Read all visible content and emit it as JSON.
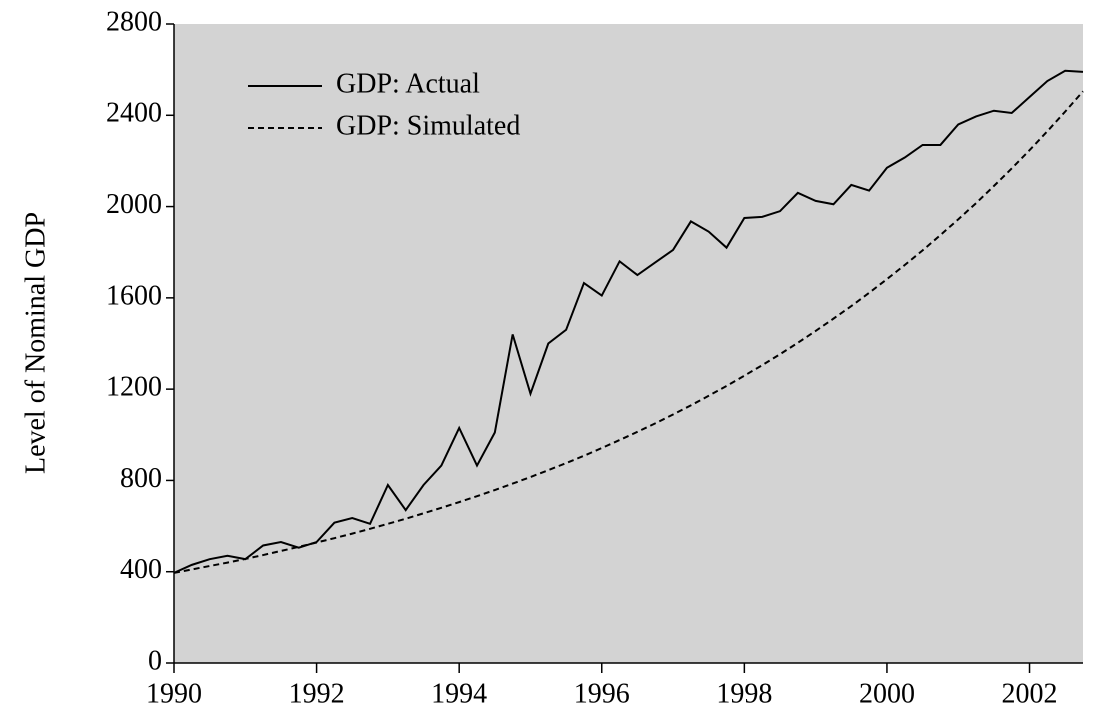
{
  "chart_data": {
    "type": "line",
    "y_label": "Level of Nominal GDP",
    "x": [
      1990,
      1990.25,
      1990.5,
      1990.75,
      1991,
      1991.25,
      1991.5,
      1991.75,
      1992,
      1992.25,
      1992.5,
      1992.75,
      1993,
      1993.25,
      1993.5,
      1993.75,
      1994,
      1994.25,
      1994.5,
      1994.75,
      1995,
      1995.25,
      1995.5,
      1995.75,
      1996,
      1996.25,
      1996.5,
      1996.75,
      1997,
      1997.25,
      1997.5,
      1997.75,
      1998,
      1998.25,
      1998.5,
      1998.75,
      1999,
      1999.25,
      1999.5,
      1999.75,
      2000,
      2000.25,
      2000.5,
      2000.75,
      2001,
      2001.25,
      2001.5,
      2001.75,
      2002,
      2002.25,
      2002.5,
      2002.75
    ],
    "series": [
      {
        "name": "GDP: Actual",
        "color": "#000000",
        "linestyle": "solid",
        "values": [
          395,
          430,
          455,
          470,
          455,
          515,
          530,
          505,
          530,
          615,
          635,
          610,
          780,
          670,
          780,
          865,
          1030,
          865,
          1010,
          1440,
          1180,
          1400,
          1460,
          1665,
          1610,
          1760,
          1700,
          1755,
          1810,
          1935,
          1890,
          1820,
          1950,
          1955,
          1980,
          2060,
          2025,
          2010,
          2095,
          2070,
          2170,
          2215,
          2270,
          2270,
          2360,
          2395,
          2420,
          2410,
          2480,
          2550,
          2595,
          2590
        ]
      },
      {
        "name": "GDP: Simulated",
        "color": "#000000",
        "linestyle": "dashed",
        "values": [
          395,
          410,
          425,
          440,
          456,
          473,
          491,
          509,
          528,
          547,
          567,
          588,
          610,
          632,
          656,
          680,
          705,
          731,
          758,
          786,
          815,
          845,
          876,
          908,
          942,
          977,
          1013,
          1050,
          1089,
          1129,
          1171,
          1214,
          1259,
          1305,
          1353,
          1403,
          1455,
          1509,
          1564,
          1622,
          1682,
          1744,
          1808,
          1875,
          1944,
          2015,
          2090,
          2167,
          2247,
          2330,
          2416,
          2505
        ]
      }
    ],
    "xlim": [
      1990,
      2002.75
    ],
    "xticks": [
      1990,
      1992,
      1994,
      1996,
      1998,
      2000,
      2002
    ],
    "ylim": [
      0,
      2800
    ],
    "yticks": [
      0,
      400,
      800,
      1200,
      1600,
      2000,
      2400,
      2800
    ],
    "plot_background": "#d3d3d3",
    "legend": "upper left"
  }
}
